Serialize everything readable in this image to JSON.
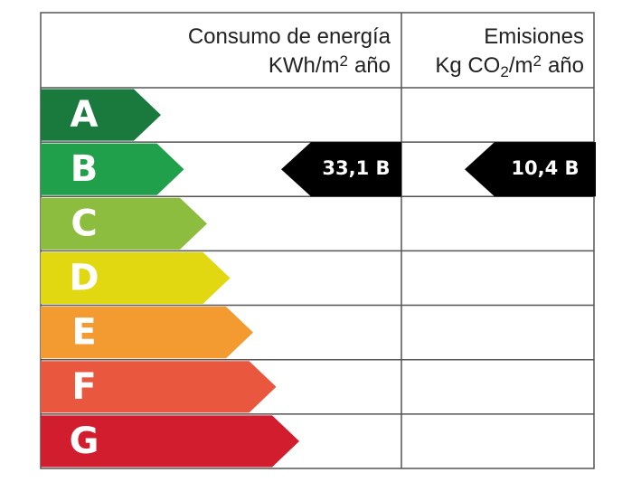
{
  "header": {
    "energy": {
      "title": "Consumo de energía",
      "unit": [
        "KWh/m",
        "2",
        "año"
      ]
    },
    "emissions": {
      "title": "Emisiones",
      "unit": [
        "Kg CO",
        "2",
        "/m",
        "2",
        "año"
      ]
    }
  },
  "classes": [
    {
      "letter": "A",
      "color": "#1a7a3e"
    },
    {
      "letter": "B",
      "color": "#20a04b"
    },
    {
      "letter": "C",
      "color": "#8dbd3e"
    },
    {
      "letter": "D",
      "color": "#e1d811"
    },
    {
      "letter": "E",
      "color": "#f39a30"
    },
    {
      "letter": "F",
      "color": "#e8573e"
    },
    {
      "letter": "G",
      "color": "#d11d2d"
    }
  ],
  "ratings": {
    "energy": "33,1 B",
    "emissions": "10,4 B"
  }
}
